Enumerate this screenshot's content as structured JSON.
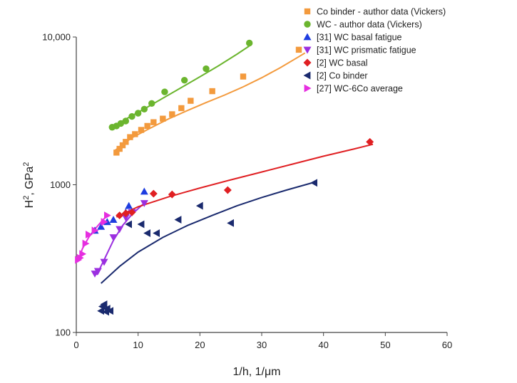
{
  "chart_data": {
    "type": "scatter",
    "title": "",
    "xlabel": "1/h, 1/μm",
    "ylabel_main": "H",
    "ylabel_sup1": "2",
    "ylabel_mid": ", GPa",
    "ylabel_sup2": "2",
    "xlim": [
      0,
      60
    ],
    "ylim": [
      100,
      10000
    ],
    "y_scale": "log",
    "grid": false,
    "legend_position": "top-right",
    "x_ticks": [
      {
        "value": 0,
        "label": "0"
      },
      {
        "value": 10,
        "label": "10"
      },
      {
        "value": 20,
        "label": "20"
      },
      {
        "value": 30,
        "label": "30"
      },
      {
        "value": 40,
        "label": "40"
      },
      {
        "value": 50,
        "label": "50"
      },
      {
        "value": 60,
        "label": "60"
      }
    ],
    "y_ticks": [
      {
        "value": 100,
        "label": "100"
      },
      {
        "value": 1000,
        "label": "1000"
      },
      {
        "value": 10000,
        "label": "10,000"
      }
    ],
    "series": [
      {
        "name": "Co binder - author data (Vickers)",
        "color": "#F39A3D",
        "marker": "square",
        "points": [
          [
            6.5,
            1650
          ],
          [
            7,
            1750
          ],
          [
            7.5,
            1850
          ],
          [
            8,
            1950
          ],
          [
            8.7,
            2100
          ],
          [
            9.5,
            2200
          ],
          [
            10.5,
            2350
          ],
          [
            11.5,
            2500
          ],
          [
            12.5,
            2650
          ],
          [
            14,
            2800
          ],
          [
            15.5,
            3000
          ],
          [
            17,
            3300
          ],
          [
            18.5,
            3700
          ],
          [
            22,
            4300
          ],
          [
            27,
            5400
          ],
          [
            36,
            8200
          ]
        ],
        "curve": [
          [
            6.2,
            1700
          ],
          [
            9,
            2080
          ],
          [
            12,
            2420
          ],
          [
            15,
            2800
          ],
          [
            18,
            3180
          ],
          [
            21,
            3600
          ],
          [
            24,
            4050
          ],
          [
            27,
            4600
          ],
          [
            30,
            5300
          ],
          [
            33,
            6200
          ],
          [
            36,
            7350
          ],
          [
            37,
            7800
          ]
        ]
      },
      {
        "name": "WC - author data (Vickers)",
        "color": "#6BB52E",
        "marker": "circle",
        "points": [
          [
            5.8,
            2450
          ],
          [
            6.5,
            2500
          ],
          [
            7.2,
            2600
          ],
          [
            8,
            2700
          ],
          [
            9,
            2900
          ],
          [
            10,
            3050
          ],
          [
            11,
            3250
          ],
          [
            12.2,
            3550
          ],
          [
            14.3,
            4250
          ],
          [
            17.5,
            5100
          ],
          [
            21,
            6100
          ],
          [
            28,
            9100
          ]
        ],
        "curve": [
          [
            5.5,
            2420
          ],
          [
            8,
            2780
          ],
          [
            11,
            3260
          ],
          [
            14,
            3850
          ],
          [
            17,
            4550
          ],
          [
            20,
            5380
          ],
          [
            23,
            6380
          ],
          [
            26,
            7650
          ],
          [
            28,
            8700
          ]
        ]
      },
      {
        "name": "[31] WC basal fatigue",
        "color": "#1E3DE0",
        "marker": "triangle-up",
        "points": [
          [
            3,
            490
          ],
          [
            4,
            520
          ],
          [
            5,
            560
          ],
          [
            6,
            580
          ],
          [
            8,
            650
          ],
          [
            8.5,
            720
          ],
          [
            11,
            900
          ]
        ]
      },
      {
        "name": "[31] WC prismatic fatigue",
        "color": "#9B2FE0",
        "marker": "triangle-down",
        "points": [
          [
            3,
            250
          ],
          [
            3.5,
            260
          ],
          [
            4.5,
            300
          ],
          [
            6,
            440
          ],
          [
            7,
            500
          ],
          [
            8,
            600
          ],
          [
            9,
            650
          ],
          [
            11,
            750
          ]
        ],
        "curve": [
          [
            3.3,
            245
          ],
          [
            4.5,
            310
          ],
          [
            6,
            420
          ],
          [
            7.5,
            530
          ],
          [
            9,
            630
          ],
          [
            10.5,
            720
          ],
          [
            11.5,
            780
          ]
        ]
      },
      {
        "name": "[2] WC basal",
        "color": "#E01F22",
        "marker": "diamond",
        "points": [
          [
            7,
            620
          ],
          [
            8,
            640
          ],
          [
            9,
            650
          ],
          [
            12.5,
            870
          ],
          [
            15.5,
            860
          ],
          [
            24.5,
            920
          ],
          [
            47.5,
            1950
          ]
        ],
        "curve": [
          [
            6.5,
            605
          ],
          [
            10,
            710
          ],
          [
            15,
            830
          ],
          [
            20,
            950
          ],
          [
            25,
            1080
          ],
          [
            30,
            1220
          ],
          [
            35,
            1380
          ],
          [
            40,
            1560
          ],
          [
            45,
            1750
          ],
          [
            48,
            1880
          ]
        ]
      },
      {
        "name": "[2] Co binder",
        "color": "#1A2A6E",
        "marker": "triangle-left",
        "points": [
          [
            4,
            140
          ],
          [
            4.5,
            155
          ],
          [
            5,
            145
          ],
          [
            5.5,
            140
          ],
          [
            4.2,
            150
          ],
          [
            4.8,
            138
          ],
          [
            8.5,
            540
          ],
          [
            10.5,
            540
          ],
          [
            11.5,
            470
          ],
          [
            13,
            470
          ],
          [
            16.5,
            580
          ],
          [
            20,
            720
          ],
          [
            25,
            550
          ],
          [
            38.5,
            1030
          ]
        ],
        "curve": [
          [
            4,
            215
          ],
          [
            7,
            280
          ],
          [
            10,
            350
          ],
          [
            14,
            440
          ],
          [
            18,
            530
          ],
          [
            22,
            620
          ],
          [
            26,
            720
          ],
          [
            30,
            820
          ],
          [
            34,
            920
          ],
          [
            38.5,
            1040
          ]
        ]
      },
      {
        "name": "[27] WC-6Co average",
        "color": "#E62EE0",
        "marker": "triangle-right",
        "points": [
          [
            0.3,
            310
          ],
          [
            0.6,
            320
          ],
          [
            1,
            340
          ],
          [
            1.5,
            400
          ],
          [
            2,
            460
          ],
          [
            3,
            490
          ],
          [
            4.5,
            560
          ],
          [
            5,
            620
          ]
        ],
        "curve": [
          [
            0.2,
            300
          ],
          [
            1,
            370
          ],
          [
            2,
            440
          ],
          [
            3,
            500
          ],
          [
            4,
            560
          ],
          [
            5,
            620
          ]
        ]
      }
    ]
  }
}
